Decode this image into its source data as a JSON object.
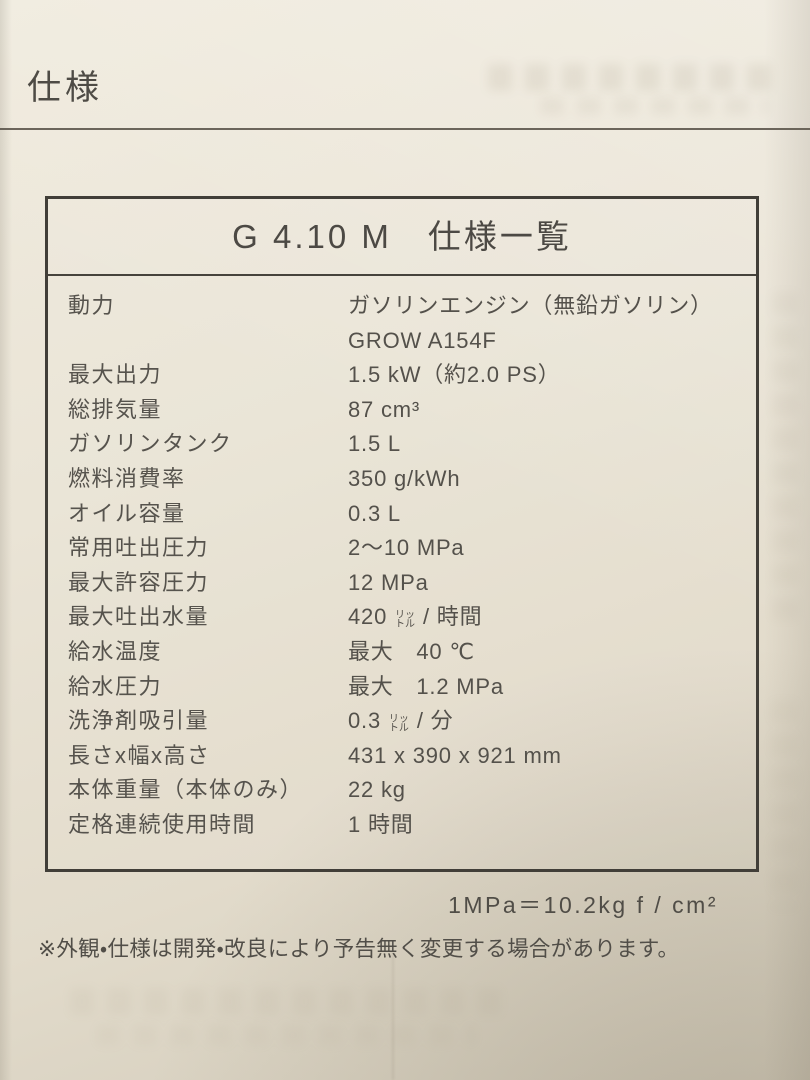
{
  "page": {
    "heading": "仕様"
  },
  "table": {
    "title": "G 4.10 M　仕様一覧",
    "rows": [
      {
        "label": "動力",
        "value": "ガソリンエンジン（無鉛ガソリン）",
        "value2": "GROW A154F"
      },
      {
        "label": "最大出力",
        "value": "1.5 kW（約2.0 PS）"
      },
      {
        "label": "総排気量",
        "value": "87 cm³"
      },
      {
        "label": "ガソリンタンク",
        "value": "1.5 L"
      },
      {
        "label": "燃料消費率",
        "value": "350 g/kWh"
      },
      {
        "label": "オイル容量",
        "value": "0.3 L"
      },
      {
        "label": "常用吐出圧力",
        "value": "2～10 MPa"
      },
      {
        "label": "最大許容圧力",
        "value": "12 MPa"
      },
      {
        "label": "最大吐出水量",
        "value": "420 ㍑ / 時間"
      },
      {
        "label": "給水温度",
        "value": "最大　40 ℃"
      },
      {
        "label": "給水圧力",
        "value": "最大　1.2 MPa"
      },
      {
        "label": "洗浄剤吸引量",
        "value": "0.3 ㍑ / 分"
      },
      {
        "label": "長さx幅x高さ",
        "value": "431 x 390 x 921 mm"
      },
      {
        "label": "本体重量（本体のみ）",
        "value": "22 kg"
      },
      {
        "label": "定格連続使用時間",
        "value": "1 時間"
      }
    ]
  },
  "footer": {
    "conversion_note": "1MPa＝10.2kg f / cm²",
    "disclaimer": "※外観・仕様は開発・改良により予告無く変更する場合があります。"
  },
  "colors": {
    "paper": "#e9e3d4",
    "ink": "#54514b",
    "table_border": "#413e38"
  }
}
